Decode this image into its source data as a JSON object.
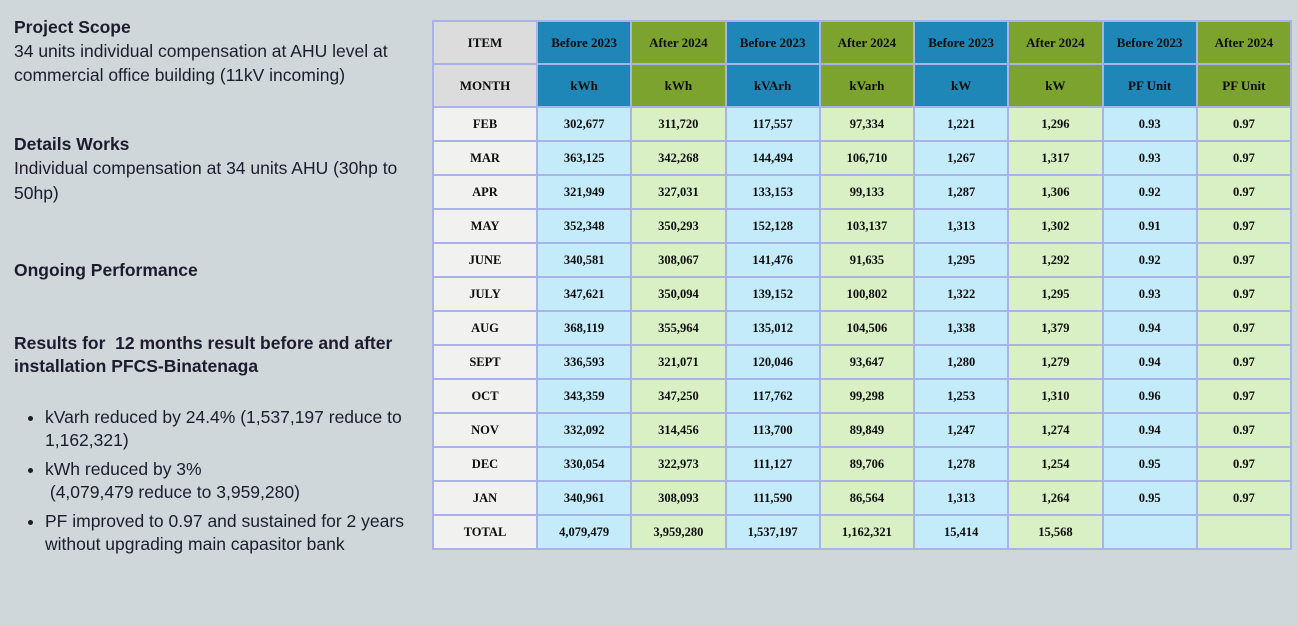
{
  "left_panel": {
    "project_scope": {
      "heading": "Project Scope",
      "body": "34 units individual compensation at AHU level at commercial office building (11kV incoming)"
    },
    "details_works": {
      "heading": "Details Works",
      "body": "Individual compensation at 34 units AHU (30hp to 50hp)"
    },
    "ongoing_performance": {
      "heading": "Ongoing Performance"
    },
    "results": {
      "heading": "Results for  12 months result before and after installation PFCS-Binatenaga",
      "bullets": [
        "kVarh reduced by 24.4% (1,537,197 reduce to 1,162,321)",
        "kWh reduced by 3%\n (4,079,479 reduce to 3,959,280)",
        "PF improved to 0.97 and sustained for 2 years without upgrading main capasitor bank"
      ]
    }
  },
  "table": {
    "header_row1": [
      "ITEM",
      "Before 2023",
      "After 2024",
      "Before 2023",
      "After 2024",
      "Before 2023",
      "After 2024",
      "Before 2023",
      "After 2024"
    ],
    "header_row2": [
      "MONTH",
      "kWh",
      "kWh",
      "kVArh",
      "kVarh",
      "kW",
      "kW",
      "PF Unit",
      "PF Unit"
    ],
    "rows": [
      [
        "FEB",
        "302,677",
        "311,720",
        "117,557",
        "97,334",
        "1,221",
        "1,296",
        "0.93",
        "0.97"
      ],
      [
        "MAR",
        "363,125",
        "342,268",
        "144,494",
        "106,710",
        "1,267",
        "1,317",
        "0.93",
        "0.97"
      ],
      [
        "APR",
        "321,949",
        "327,031",
        "133,153",
        "99,133",
        "1,287",
        "1,306",
        "0.92",
        "0.97"
      ],
      [
        "MAY",
        "352,348",
        "350,293",
        "152,128",
        "103,137",
        "1,313",
        "1,302",
        "0.91",
        "0.97"
      ],
      [
        "JUNE",
        "340,581",
        "308,067",
        "141,476",
        "91,635",
        "1,295",
        "1,292",
        "0.92",
        "0.97"
      ],
      [
        "JULY",
        "347,621",
        "350,094",
        "139,152",
        "100,802",
        "1,322",
        "1,295",
        "0.93",
        "0.97"
      ],
      [
        "AUG",
        "368,119",
        "355,964",
        "135,012",
        "104,506",
        "1,338",
        "1,379",
        "0.94",
        "0.97"
      ],
      [
        "SEPT",
        "336,593",
        "321,071",
        "120,046",
        "93,647",
        "1,280",
        "1,279",
        "0.94",
        "0.97"
      ],
      [
        "OCT",
        "343,359",
        "347,250",
        "117,762",
        "99,298",
        "1,253",
        "1,310",
        "0.96",
        "0.97"
      ],
      [
        "NOV",
        "332,092",
        "314,456",
        "113,700",
        "89,849",
        "1,247",
        "1,274",
        "0.94",
        "0.97"
      ],
      [
        "DEC",
        "330,054",
        "322,973",
        "111,127",
        "89,706",
        "1,278",
        "1,254",
        "0.95",
        "0.97"
      ],
      [
        "JAN",
        "340,961",
        "308,093",
        "111,590",
        "86,564",
        "1,313",
        "1,264",
        "0.95",
        "0.97"
      ]
    ],
    "total_row": [
      "TOTAL",
      "4,079,479",
      "3,959,280",
      "1,537,197",
      "1,162,321",
      "15,414",
      "15,568",
      "",
      ""
    ]
  },
  "colors": {
    "page_background": "#cfd7db",
    "header_blue": "#1e87b8",
    "header_green": "#7ca32d",
    "cell_blue": "#c4ebfa",
    "cell_green": "#d9efc4",
    "label_header_gray": "#dcdcdc",
    "label_cell_gray": "#f1f1f0",
    "table_border": "#a9b3e8",
    "text_dark": "#1c1c2e"
  }
}
